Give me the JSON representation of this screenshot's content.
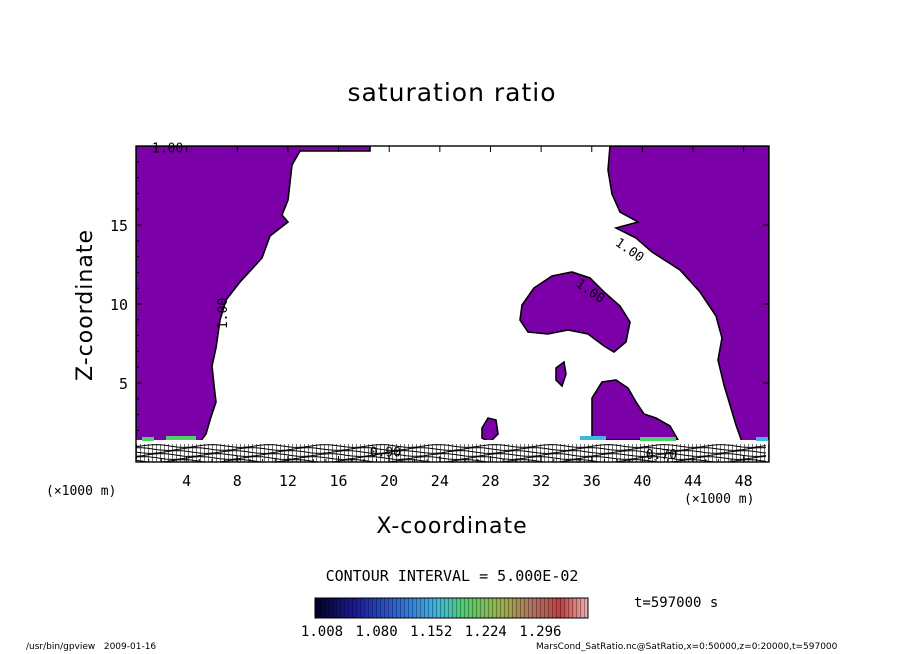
{
  "chart_data": {
    "type": "contour",
    "title": "saturation ratio",
    "xlabel": "X-coordinate",
    "ylabel": "Z-coordinate",
    "x_unit": "(×1000 m)",
    "y_unit": "(×1000 m)",
    "xlim": [
      0,
      50
    ],
    "ylim": [
      0,
      20
    ],
    "x_ticks": [
      4,
      8,
      12,
      16,
      20,
      24,
      28,
      32,
      36,
      40,
      44,
      48
    ],
    "y_ticks": [
      5,
      10,
      15
    ],
    "contour_labels": [
      "1.00",
      "1.00",
      "1.00",
      "1.00",
      "0.90",
      "0.70"
    ],
    "contour_interval_text": "CONTOUR INTERVAL = 5.000E-02",
    "colorbar": {
      "ticks": [
        "1.008",
        "1.080",
        "1.152",
        "1.224",
        "1.296"
      ],
      "min": 1.008,
      "max": 1.296
    },
    "time_label": "t=597000 s",
    "fill_color": "#7b00a8"
  },
  "footer": {
    "left": "/usr/bin/gpview   2009-01-16",
    "right": "MarsCond_SatRatio.nc@SatRatio,x=0:50000,z=0:20000,t=597000"
  }
}
